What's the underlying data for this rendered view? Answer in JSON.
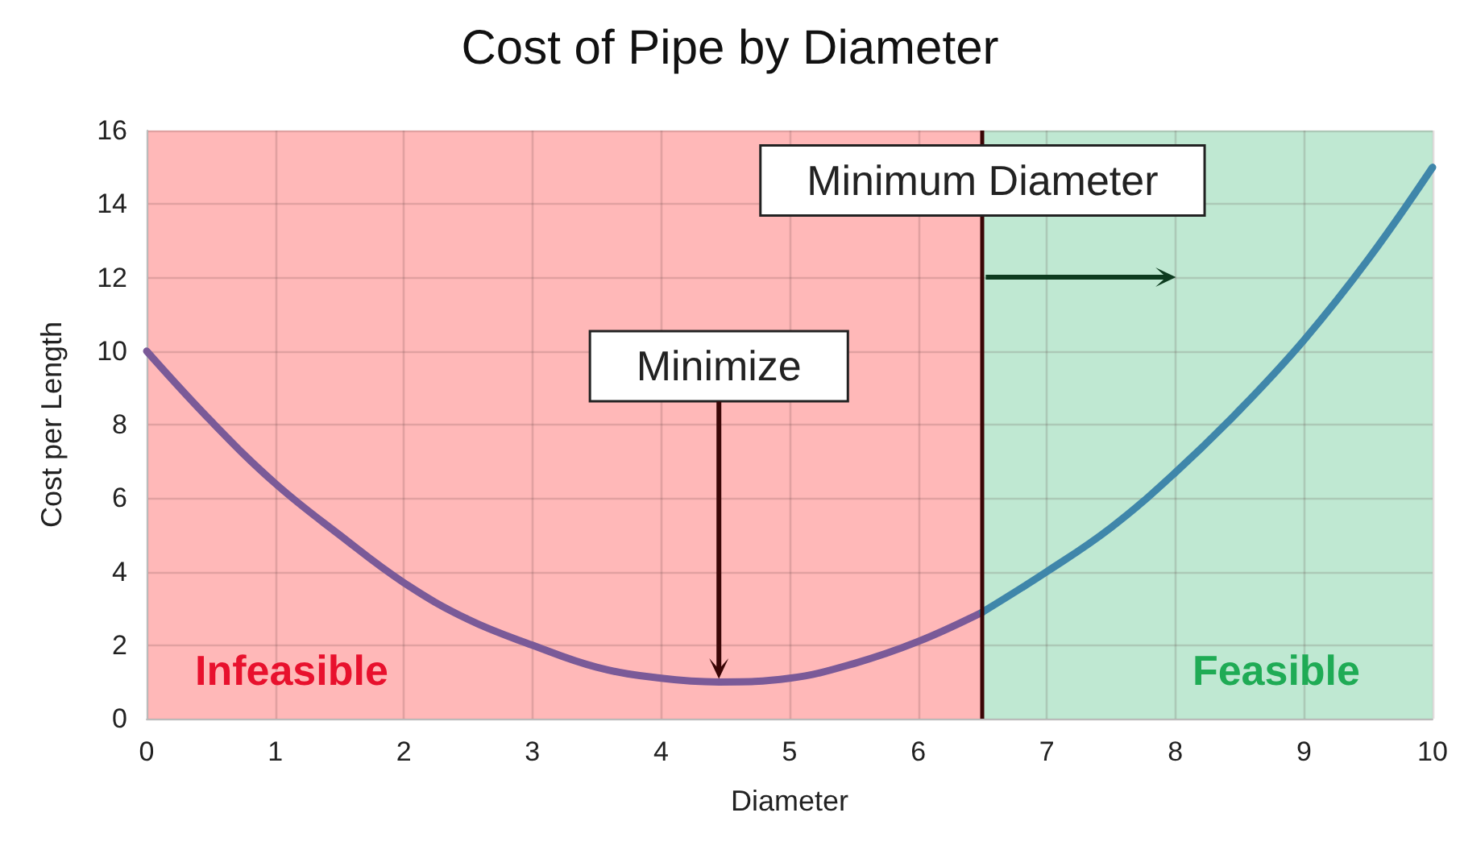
{
  "chart_data": {
    "type": "line",
    "title": "Cost of Pipe by Diameter",
    "xlabel": "Diameter",
    "ylabel": "Cost per Length",
    "series": [
      {
        "color": "#7a5a98",
        "x": [
          0,
          0.5,
          1,
          1.5,
          2,
          2.5,
          3,
          3.5,
          4,
          4.45,
          5,
          5.5,
          6,
          6.5
        ],
        "values": [
          10,
          8.1,
          6.4,
          5.0,
          3.7,
          2.7,
          2.0,
          1.4,
          1.1,
          1.0,
          1.1,
          1.5,
          2.1,
          2.9
        ]
      },
      {
        "color": "#3f86aa",
        "x": [
          6.5,
          7,
          7.5,
          8,
          8.5,
          9,
          9.5,
          10
        ],
        "values": [
          2.9,
          4.0,
          5.2,
          6.7,
          8.4,
          10.3,
          12.5,
          15.0
        ]
      }
    ],
    "xlim": [
      0,
      10
    ],
    "xticks": [
      0,
      1,
      2,
      3,
      4,
      5,
      6,
      7,
      8,
      9,
      10
    ],
    "ylim": [
      0,
      16
    ],
    "yticks": [
      0,
      2,
      4,
      6,
      8,
      10,
      12,
      14,
      16
    ],
    "grid": true,
    "marker": "none",
    "line_style": "solid",
    "ref_lines": [
      {
        "axis": "x",
        "value": 6.5,
        "label": "Minimum Diameter",
        "color": "#3a0606"
      }
    ],
    "bands": [
      {
        "axis": "x",
        "from": 0,
        "to": 6.5,
        "label": "Infeasible",
        "color": "#ffb8b8"
      },
      {
        "axis": "x",
        "from": 6.5,
        "to": 10,
        "label": "Feasible",
        "color": "#bfe8d2"
      }
    ],
    "annotations": [
      {
        "text": "Minimize",
        "x": 4.45,
        "y": 1
      }
    ]
  }
}
